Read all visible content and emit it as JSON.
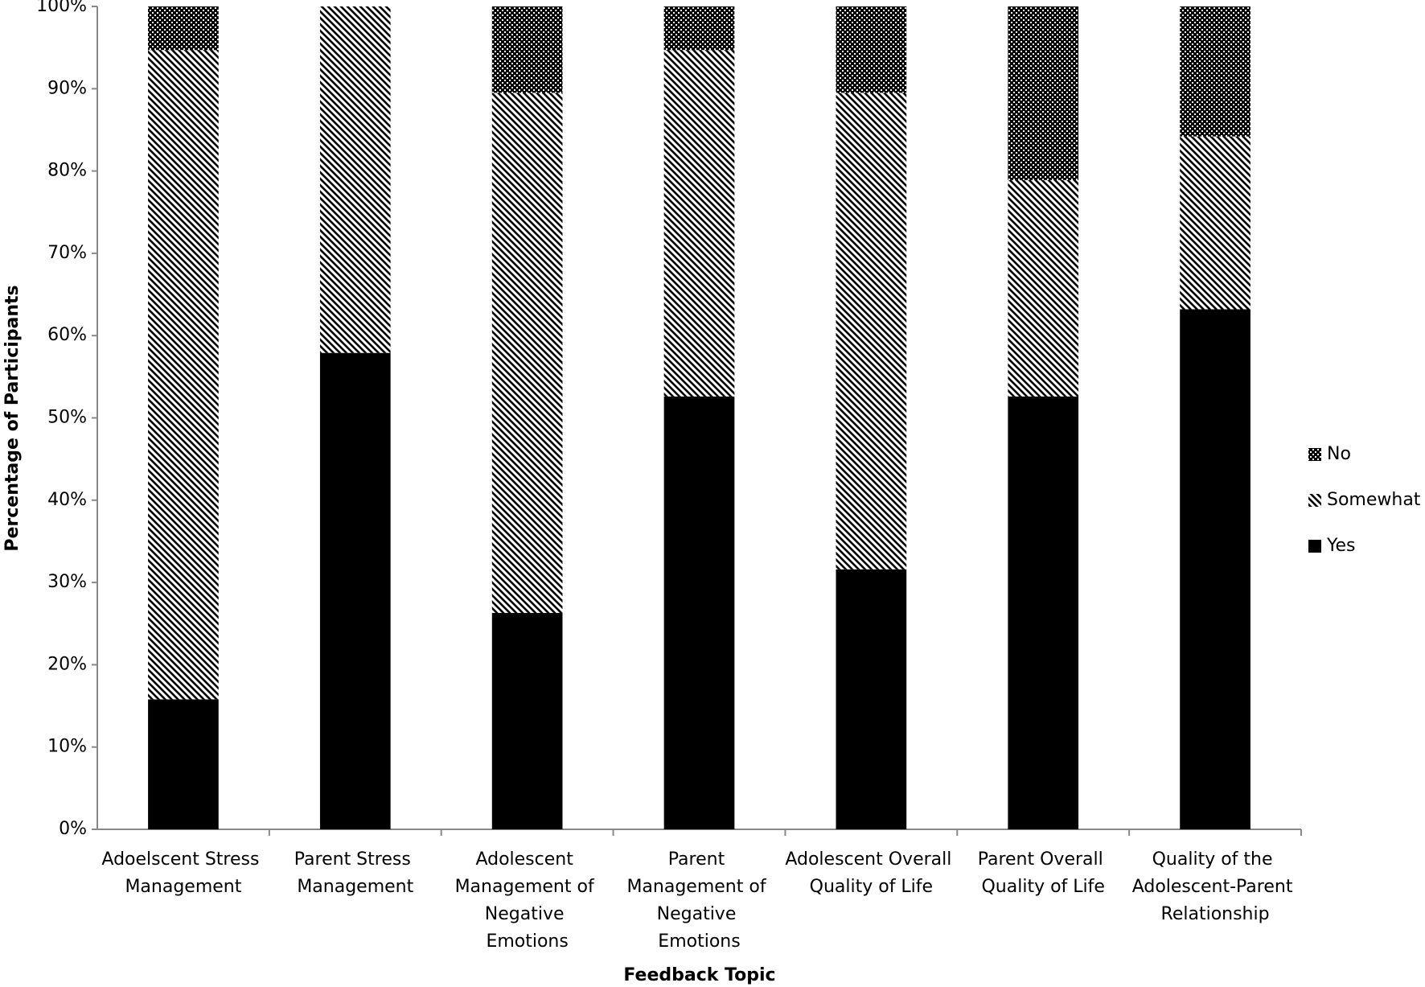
{
  "chart_data": {
    "type": "stacked_bar",
    "x_label": "Feedback Topic",
    "y_label": "Percentage of Participants",
    "categories": [
      "Adoelscent Stress Management",
      "Parent Stress Management",
      "Adolescent Management of Negative Emotions",
      "Parent Management of Negative Emotions",
      "Adolescent Overall Quality of Life",
      "Parent Overall Quality of Life",
      "Quality of the Adolescent-Parent Relationship"
    ],
    "series": [
      {
        "name": "Yes",
        "color": "#000000",
        "pattern": "solid",
        "values": [
          15.8,
          57.9,
          26.3,
          52.6,
          31.6,
          52.6,
          63.2
        ]
      },
      {
        "name": "Somewhat",
        "color": "#000000",
        "pattern": "diagonal",
        "values": [
          78.9,
          42.1,
          63.2,
          42.1,
          57.9,
          26.3,
          21.0
        ]
      },
      {
        "name": "No",
        "color": "#000000",
        "pattern": "checker",
        "values": [
          5.3,
          0,
          10.5,
          5.3,
          10.5,
          21.1,
          15.8
        ]
      }
    ],
    "ylim": [
      0,
      100
    ],
    "yticks": [
      {
        "value": 0,
        "label": "0%"
      },
      {
        "value": 10,
        "label": "10%"
      },
      {
        "value": 20,
        "label": "20%"
      },
      {
        "value": 30,
        "label": "30%"
      },
      {
        "value": 40,
        "label": "40%"
      },
      {
        "value": 50,
        "label": "50%"
      },
      {
        "value": 60,
        "label": "60%"
      },
      {
        "value": 70,
        "label": "70%"
      },
      {
        "value": 80,
        "label": "80%"
      },
      {
        "value": 90,
        "label": "90%"
      },
      {
        "value": 100,
        "label": "100%"
      }
    ],
    "grid": false,
    "legend": "right"
  }
}
